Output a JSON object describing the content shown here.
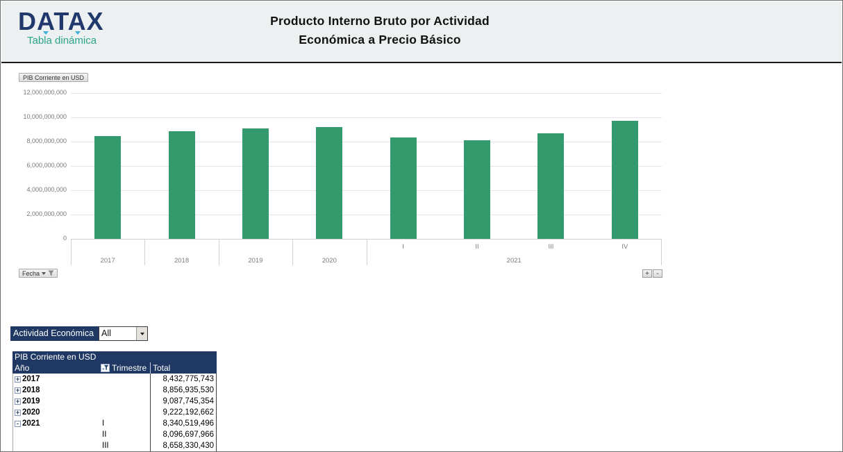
{
  "header": {
    "brand": "DATAX",
    "tagline": "Tabla dinámica",
    "title_line1": "Producto Interno Bruto por Actividad",
    "title_line2": "Económica a Precio Básico"
  },
  "chart": {
    "field_button_label": "PIB Corriente en USD",
    "axis_field_button_label": "Fecha",
    "expand_entire_field_label": "+",
    "collapse_entire_field_label": "-"
  },
  "chart_data": {
    "type": "bar",
    "title": "PIB Corriente en USD",
    "ylim": [
      0,
      12000000000
    ],
    "ytick_labels": [
      "12,000,000,000",
      "10,000,000,000",
      "8,000,000,000",
      "6,000,000,000",
      "4,000,000,000",
      "2,000,000,000",
      "0"
    ],
    "grid": true,
    "bar_color": "#349a6e",
    "groups": [
      {
        "label": "2017",
        "quarters": []
      },
      {
        "label": "2018",
        "quarters": []
      },
      {
        "label": "2019",
        "quarters": []
      },
      {
        "label": "2020",
        "quarters": []
      },
      {
        "label": "2021",
        "quarters": [
          "I",
          "II",
          "III",
          "IV"
        ]
      }
    ],
    "categories": [
      "2017",
      "2018",
      "2019",
      "2020",
      "2021-I",
      "2021-II",
      "2021-III",
      "2021-IV"
    ],
    "values": [
      8432775743,
      8856935530,
      9087745354,
      9222192662,
      8340519496,
      8096697966,
      8658330430,
      9730000000
    ]
  },
  "filter": {
    "label": "Actividad Económica",
    "value": "All"
  },
  "pivot": {
    "title": "PIB Corriente en USD",
    "headers": {
      "year": "Año",
      "quarter": "Trimestre",
      "total": "Total"
    },
    "rows": [
      {
        "expand": "+",
        "year": "2017",
        "quarter": "",
        "total": "8,432,775,743"
      },
      {
        "expand": "+",
        "year": "2018",
        "quarter": "",
        "total": "8,856,935,530"
      },
      {
        "expand": "+",
        "year": "2019",
        "quarter": "",
        "total": "9,087,745,354"
      },
      {
        "expand": "+",
        "year": "2020",
        "quarter": "",
        "total": "9,222,192,662"
      },
      {
        "expand": "-",
        "year": "2021",
        "quarter": "I",
        "total": "8,340,519,496"
      },
      {
        "expand": "",
        "year": "",
        "quarter": "II",
        "total": "8,096,697,966"
      },
      {
        "expand": "",
        "year": "",
        "quarter": "III",
        "total": "8,658,330,430"
      }
    ]
  }
}
